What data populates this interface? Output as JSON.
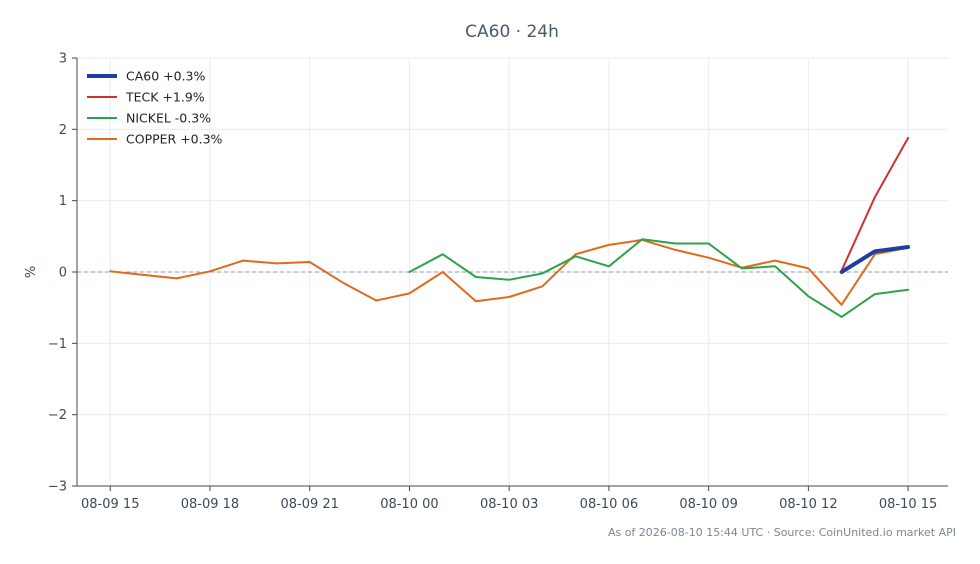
{
  "chart_data": {
    "type": "line",
    "title": "CA60 · 24h",
    "ylabel": "%",
    "ylim": [
      -3,
      3
    ],
    "yticks": [
      -3,
      -2,
      -1,
      0,
      1,
      2,
      3
    ],
    "ytick_labels": [
      "−3",
      "−2",
      "−1",
      "0",
      "1",
      "2",
      "3"
    ],
    "xlim": [
      "2026-08-09 14:00",
      "2026-08-10 16:12"
    ],
    "xticks": [
      "2026-08-09 15:00",
      "2026-08-09 18:00",
      "2026-08-09 21:00",
      "2026-08-10 00:00",
      "2026-08-10 03:00",
      "2026-08-10 06:00",
      "2026-08-10 09:00",
      "2026-08-10 12:00",
      "2026-08-10 15:00"
    ],
    "xtick_labels": [
      "08-09 15",
      "08-09 18",
      "08-09 21",
      "08-10 00",
      "08-10 03",
      "08-10 06",
      "08-10 09",
      "08-10 12",
      "08-10 15"
    ],
    "grid": true,
    "zero_line": true,
    "legend_position": "top-left",
    "series": [
      {
        "name": "CA60 +0.3%",
        "color": "#1f3fa0",
        "width": 4,
        "x": [
          "2026-08-10 13:00",
          "2026-08-10 14:00",
          "2026-08-10 15:00"
        ],
        "y": [
          0.0,
          0.29,
          0.35
        ]
      },
      {
        "name": "TECK +1.9%",
        "color": "#cc3333",
        "width": 2,
        "x": [
          "2026-08-10 13:00",
          "2026-08-10 14:00",
          "2026-08-10 15:00"
        ],
        "y": [
          0.02,
          1.05,
          1.88
        ]
      },
      {
        "name": "NICKEL -0.3%",
        "color": "#2ca24a",
        "width": 2,
        "x": [
          "2026-08-10 00:00",
          "2026-08-10 01:00",
          "2026-08-10 02:00",
          "2026-08-10 03:00",
          "2026-08-10 04:00",
          "2026-08-10 05:00",
          "2026-08-10 06:00",
          "2026-08-10 07:00",
          "2026-08-10 08:00",
          "2026-08-10 09:00",
          "2026-08-10 10:00",
          "2026-08-10 11:00",
          "2026-08-10 12:00",
          "2026-08-10 13:00",
          "2026-08-10 14:00",
          "2026-08-10 15:00"
        ],
        "y": [
          0.0,
          0.25,
          -0.07,
          -0.11,
          -0.02,
          0.22,
          0.08,
          0.46,
          0.4,
          0.4,
          0.05,
          0.08,
          -0.34,
          -0.63,
          -0.31,
          -0.25
        ]
      },
      {
        "name": "COPPER +0.3%",
        "color": "#e06a1a",
        "width": 2,
        "x": [
          "2026-08-09 15:00",
          "2026-08-09 16:00",
          "2026-08-09 17:00",
          "2026-08-09 18:00",
          "2026-08-09 19:00",
          "2026-08-09 20:00",
          "2026-08-09 21:00",
          "2026-08-09 22:00",
          "2026-08-09 23:00",
          "2026-08-10 00:00",
          "2026-08-10 01:00",
          "2026-08-10 02:00",
          "2026-08-10 03:00",
          "2026-08-10 04:00",
          "2026-08-10 05:00",
          "2026-08-10 06:00",
          "2026-08-10 07:00",
          "2026-08-10 08:00",
          "2026-08-10 09:00",
          "2026-08-10 10:00",
          "2026-08-10 11:00",
          "2026-08-10 12:00",
          "2026-08-10 13:00",
          "2026-08-10 14:00",
          "2026-08-10 15:00"
        ],
        "y": [
          0.01,
          -0.04,
          -0.09,
          0.01,
          0.16,
          0.12,
          0.14,
          -0.15,
          -0.4,
          -0.3,
          0.0,
          -0.41,
          -0.35,
          -0.2,
          0.25,
          0.38,
          0.45,
          0.31,
          0.2,
          0.06,
          0.16,
          0.05,
          -0.46,
          0.25,
          0.34
        ]
      }
    ]
  },
  "footer": {
    "text": "As of 2026-08-10 15:44 UTC · Source: CoinUnited.io market API"
  }
}
